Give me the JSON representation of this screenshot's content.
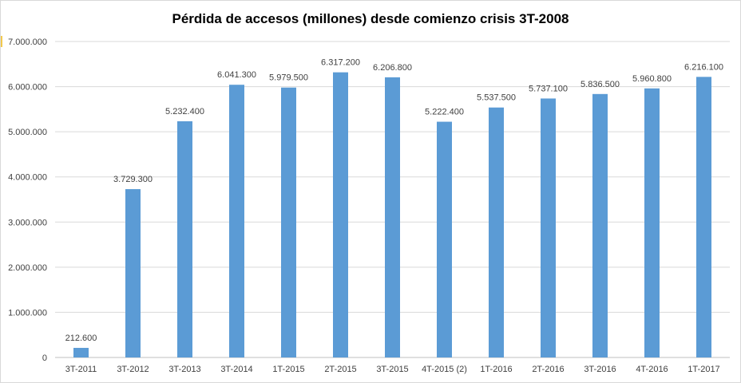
{
  "chart_data": {
    "type": "bar",
    "title": "Pérdida de accesos (millones) desde comienzo crisis 3T-2008",
    "xlabel": "",
    "ylabel": "",
    "categories": [
      "3T-2011",
      "3T-2012",
      "3T-2013",
      "3T-2014",
      "1T-2015",
      "2T-2015",
      "3T-2015",
      "4T-2015 (2)",
      "1T-2016",
      "2T-2016",
      "3T-2016",
      "4T-2016",
      "1T-2017"
    ],
    "values": [
      212600,
      3729300,
      5232400,
      6041300,
      5979500,
      6317200,
      6206800,
      5222400,
      5537500,
      5737100,
      5836500,
      5960800,
      6216100
    ],
    "data_labels": [
      "212.600",
      "3.729.300",
      "5.232.400",
      "6.041.300",
      "5.979.500",
      "6.317.200",
      "6.206.800",
      "5.222.400",
      "5.537.500",
      "5.737.100",
      "5.836.500",
      "5.960.800",
      "6.216.100"
    ],
    "ylim": [
      0,
      7000000
    ],
    "yticks": [
      0,
      1000000,
      2000000,
      3000000,
      4000000,
      5000000,
      6000000,
      7000000
    ],
    "ytick_labels": [
      "0",
      "1.000.000",
      "2.000.000",
      "3.000.000",
      "4.000.000",
      "5.000.000",
      "6.000.000",
      "7.000.000"
    ],
    "grid": true,
    "legend": "none",
    "colors": {
      "bar": "#5b9bd5",
      "grid": "#d9d9d9",
      "text": "#404040"
    }
  }
}
